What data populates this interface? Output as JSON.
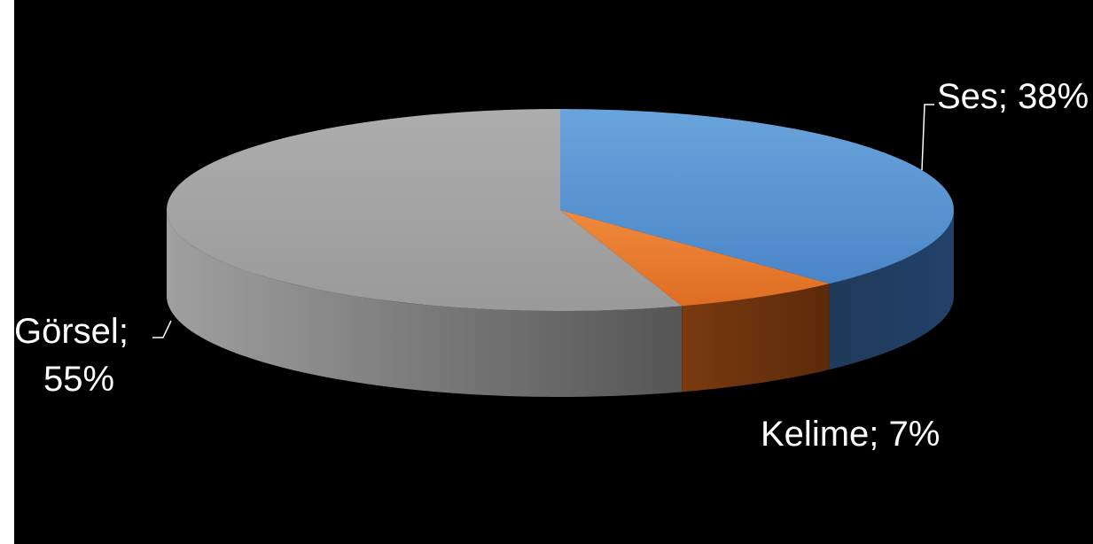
{
  "chart_data": {
    "type": "pie",
    "title": "",
    "categories": [
      "Ses",
      "Kelime",
      "Görsel"
    ],
    "values": [
      38,
      7,
      55
    ],
    "unit": "%",
    "labels": [
      "Ses; 38%",
      "Kelime; 7%",
      "Görsel;",
      "55%"
    ],
    "colors": [
      "#5b9bd5",
      "#ed7d31",
      "#a5a5a5"
    ],
    "style": "3d",
    "legend": "none",
    "background": "#000000"
  }
}
